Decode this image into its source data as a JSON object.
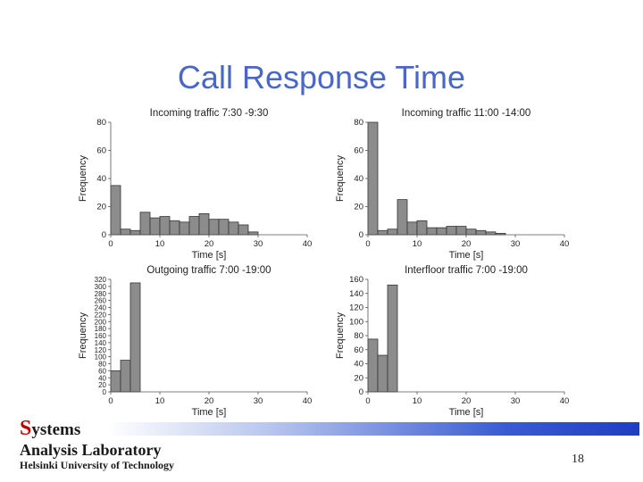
{
  "slide": {
    "title": "Call Response Time",
    "page_number": "18",
    "logo": {
      "s_letter": "S",
      "line1_rest": "ystems",
      "line2": "Analysis Laboratory",
      "line3": "Helsinki University of Technology"
    }
  },
  "colors": {
    "title": "#4a67c8",
    "bar_fill": "#8c8c8c",
    "bar_stroke": "#333333"
  },
  "chart_data": [
    {
      "type": "bar",
      "title": "Incoming traffic 7:30 -9:30",
      "xlabel": "Time [s]",
      "ylabel": "Frequency",
      "xlim": [
        0,
        40
      ],
      "ylim": [
        0,
        80
      ],
      "xticks": [
        0,
        10,
        20,
        30,
        40
      ],
      "yticks": [
        0,
        20,
        40,
        60,
        80
      ],
      "bin_width": 2,
      "values": [
        35,
        4,
        3,
        16,
        12,
        13,
        10,
        9,
        13,
        15,
        11,
        11,
        9,
        7,
        2
      ]
    },
    {
      "type": "bar",
      "title": "Incoming traffic 11:00 -14:00",
      "xlabel": "Time [s]",
      "ylabel": "Frequency",
      "xlim": [
        0,
        40
      ],
      "ylim": [
        0,
        80
      ],
      "xticks": [
        0,
        10,
        20,
        30,
        40
      ],
      "yticks": [
        0,
        20,
        40,
        60,
        80
      ],
      "bin_width": 2,
      "values": [
        80,
        3,
        4,
        25,
        9,
        10,
        5,
        5,
        6,
        6,
        4,
        3,
        2,
        1
      ]
    },
    {
      "type": "bar",
      "title": "Outgoing traffic 7:00 -19:00",
      "xlabel": "Time [s]",
      "ylabel": "Frequency",
      "xlim": [
        0,
        40
      ],
      "ylim": [
        0,
        320
      ],
      "xticks": [
        0,
        10,
        20,
        30,
        40
      ],
      "yticks": [
        0,
        20,
        40,
        60,
        80,
        100,
        120,
        140,
        160,
        180,
        200,
        220,
        240,
        260,
        280,
        300,
        320
      ],
      "bin_width": 2,
      "values": [
        60,
        90,
        310
      ]
    },
    {
      "type": "bar",
      "title": "Interfloor traffic 7:00 -19:00",
      "xlabel": "Time [s]",
      "ylabel": "Frequency",
      "xlim": [
        0,
        40
      ],
      "ylim": [
        0,
        160
      ],
      "xticks": [
        0,
        10,
        20,
        30,
        40
      ],
      "yticks": [
        0,
        20,
        40,
        60,
        80,
        100,
        120,
        140,
        160
      ],
      "bin_width": 2,
      "values": [
        75,
        52,
        152
      ]
    }
  ]
}
